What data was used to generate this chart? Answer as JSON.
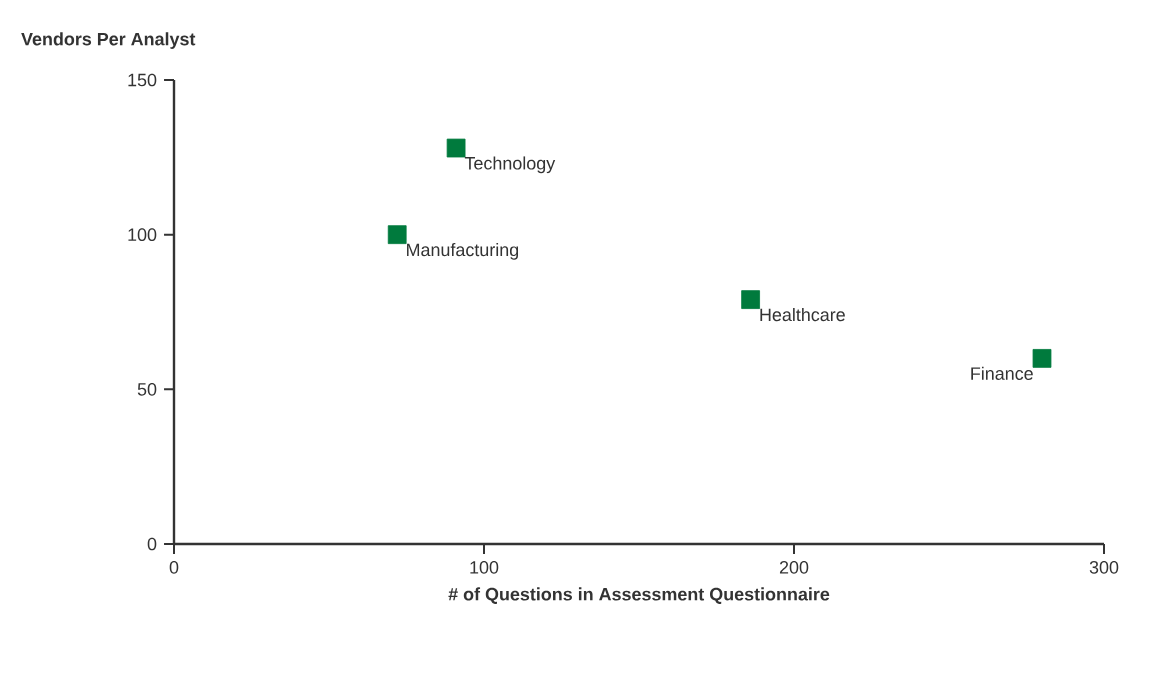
{
  "chart_data": {
    "type": "scatter",
    "ylabel": "Vendors Per Analyst",
    "xlabel": "# of Questions in Assessment Questionnaire",
    "x": [
      91,
      72,
      186,
      280
    ],
    "values": [
      128,
      100,
      79,
      60
    ],
    "color": "#007a3d",
    "marker": "square",
    "xlim": [
      0,
      300
    ],
    "ylim": [
      0,
      150
    ],
    "xticks": [
      0,
      100,
      200,
      300
    ],
    "yticks": [
      0,
      50,
      100,
      150
    ],
    "grid": false,
    "annotations": [
      {
        "text": "Technology",
        "x": 91,
        "y": 128
      },
      {
        "text": "Manufacturing",
        "x": 72,
        "y": 100
      },
      {
        "text": "Healthcare",
        "x": 186,
        "y": 79
      },
      {
        "text": "Finance",
        "x": 280,
        "y": 60
      }
    ]
  }
}
